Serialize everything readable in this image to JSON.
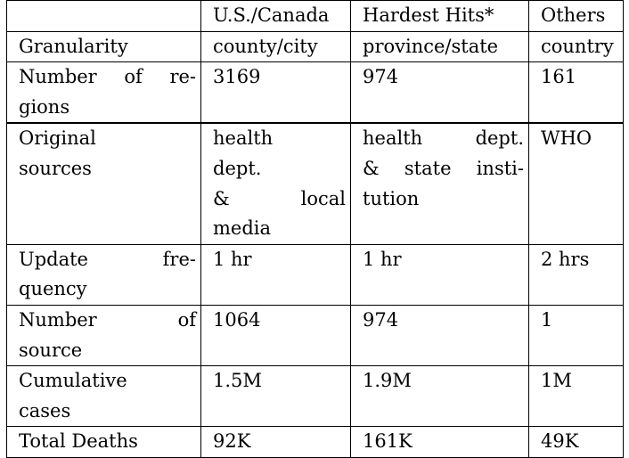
{
  "table": {
    "header": [
      "",
      "U.S./Canada",
      "Hardest Hits*",
      "Others"
    ],
    "rows": [
      {
        "label": "Granularity",
        "label_lines": [
          "Granularity"
        ],
        "cells": [
          [
            "county/city"
          ],
          [
            "province/state"
          ],
          [
            "country"
          ]
        ]
      },
      {
        "label": "Number of regions",
        "label_lines": [
          [
            "Number",
            "of",
            "re-"
          ],
          [
            "gions"
          ]
        ],
        "cells": [
          [
            "3169"
          ],
          [
            "974"
          ],
          [
            "161"
          ]
        ]
      },
      {
        "label": "Original sources",
        "label_lines": [
          "Original",
          "sources"
        ],
        "cells": [
          [
            "health",
            "dept.",
            [
              "&",
              "local"
            ],
            "media"
          ],
          [
            [
              "health",
              "dept."
            ],
            [
              "&",
              "state",
              "insti-"
            ],
            "tution"
          ],
          [
            "WHO"
          ]
        ]
      },
      {
        "label": "Update frequency",
        "label_lines": [
          [
            "Update",
            "fre-"
          ],
          [
            "quency"
          ]
        ],
        "cells": [
          [
            "1 hr"
          ],
          [
            "1 hr"
          ],
          [
            "2 hrs"
          ]
        ]
      },
      {
        "label": "Number of source",
        "label_lines": [
          [
            "Number",
            "of"
          ],
          [
            "source"
          ]
        ],
        "cells": [
          [
            "1064"
          ],
          [
            "974"
          ],
          [
            "1"
          ]
        ]
      },
      {
        "label": "Cumulative cases",
        "label_lines": [
          "Cumulative",
          "cases"
        ],
        "cells": [
          [
            "1.5M"
          ],
          [
            "1.9M"
          ],
          [
            "1M"
          ]
        ]
      },
      {
        "label": "Total Deaths",
        "label_lines": [
          "Total Deaths"
        ],
        "cells": [
          [
            "92K"
          ],
          [
            "161K"
          ],
          [
            "49K"
          ]
        ]
      }
    ]
  }
}
